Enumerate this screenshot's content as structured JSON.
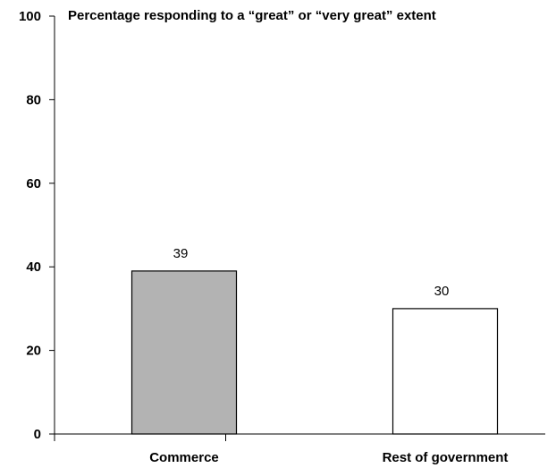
{
  "chart_data": {
    "type": "bar",
    "title": "Percentage responding to a “great” or “very great” extent",
    "xlabel": "",
    "ylabel": "",
    "categories": [
      "Commerce",
      "Rest of government"
    ],
    "series": [
      {
        "values": [
          39,
          30
        ],
        "colors": [
          "#b3b3b3",
          "#ffffff"
        ]
      }
    ],
    "data_labels": [
      "39",
      "30"
    ],
    "ylim": [
      0,
      100
    ],
    "yticks": [
      0,
      20,
      40,
      60,
      80,
      100
    ],
    "ytick_labels": [
      "0",
      "20",
      "40",
      "60",
      "80",
      "100"
    ],
    "grid": false,
    "legend": "none"
  }
}
